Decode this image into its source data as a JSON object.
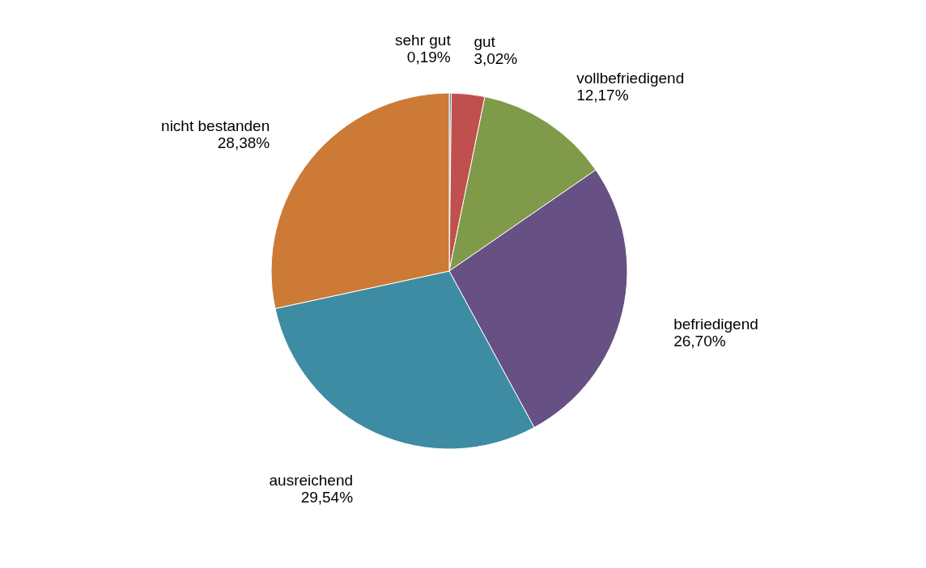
{
  "chart_data": {
    "type": "pie",
    "categories": [
      "sehr gut",
      "gut",
      "vollbefriedigend",
      "befriedigend",
      "ausreichend",
      "nicht bestanden"
    ],
    "values": [
      0.19,
      3.02,
      12.17,
      26.7,
      29.54,
      28.38
    ],
    "colors": [
      "#4f81bd",
      "#c0504d",
      "#7f9a48",
      "#675083",
      "#3d8ca3",
      "#cc7a35"
    ],
    "value_labels": [
      "0,19%",
      "3,02%",
      "12,17%",
      "26,70%",
      "29,54%",
      "28,38%"
    ],
    "legend": false
  }
}
